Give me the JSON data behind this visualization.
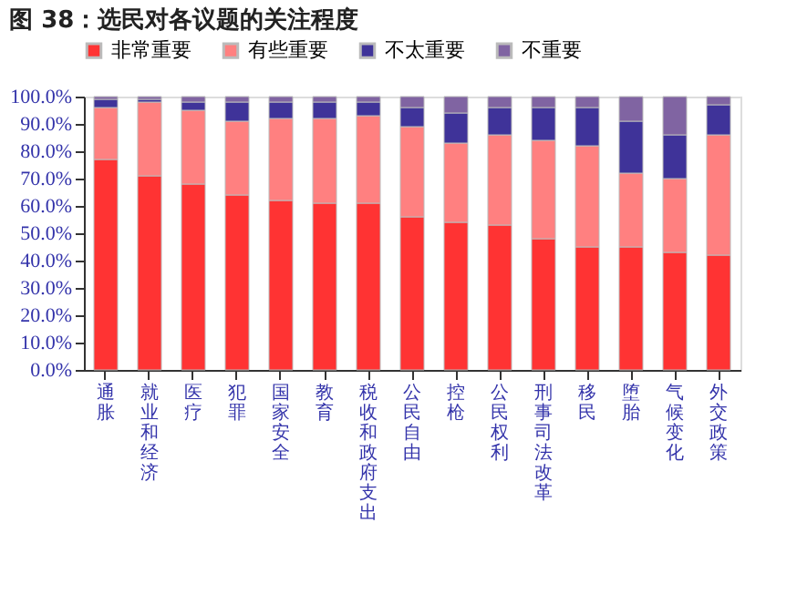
{
  "chart_data": {
    "type": "bar",
    "stacked": true,
    "title": "图 38：选民对各议题的关注程度",
    "categories": [
      "通胀",
      "就业和经济",
      "医疗",
      "犯罪",
      "国家安全",
      "教育",
      "税收和政府支出",
      "公民自由",
      "控枪",
      "公民权利",
      "刑事司法改革",
      "移民",
      "堕胎",
      "气候变化",
      "外交政策"
    ],
    "series": [
      {
        "name": "非常重要",
        "color": "#ff3333",
        "values": [
          77,
          71,
          68,
          64,
          62,
          61,
          61,
          56,
          54,
          53,
          48,
          45,
          45,
          43,
          42
        ]
      },
      {
        "name": "有些重要",
        "color": "#ff8080",
        "values": [
          19,
          27,
          27,
          27,
          30,
          31,
          32,
          33,
          29,
          33,
          36,
          37,
          27,
          27,
          44
        ]
      },
      {
        "name": "不太重要",
        "color": "#3f3399",
        "values": [
          3,
          1,
          3,
          7,
          6,
          6,
          5,
          7,
          11,
          10,
          12,
          14,
          19,
          16,
          11
        ]
      },
      {
        "name": "不重要",
        "color": "#8064a2",
        "values": [
          1,
          1,
          2,
          2,
          2,
          2,
          2,
          4,
          6,
          4,
          4,
          4,
          9,
          14,
          3
        ]
      }
    ],
    "ylim": [
      0,
      100
    ],
    "yticks": [
      {
        "value": 0,
        "label": "0.0%"
      },
      {
        "value": 10,
        "label": "10.0%"
      },
      {
        "value": 20,
        "label": "20.0%"
      },
      {
        "value": 30,
        "label": "30.0%"
      },
      {
        "value": 40,
        "label": "40.0%"
      },
      {
        "value": 50,
        "label": "50.0%"
      },
      {
        "value": 60,
        "label": "60.0%"
      },
      {
        "value": 70,
        "label": "70.0%"
      },
      {
        "value": 80,
        "label": "80.0%"
      },
      {
        "value": 90,
        "label": "90.0%"
      },
      {
        "value": 100,
        "label": "100.0%"
      }
    ],
    "grid": false,
    "legend": "top"
  }
}
